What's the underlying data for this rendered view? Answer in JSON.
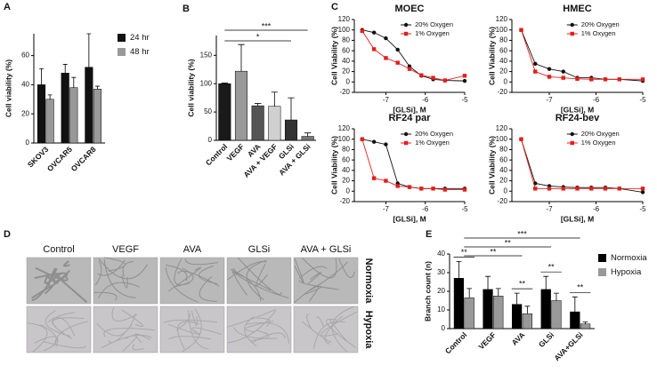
{
  "chart_data": [
    {
      "label": "A",
      "type": "bar",
      "ylabel": "Cell viability (%)",
      "categories": [
        "SKOV3",
        "OVCAR5",
        "OVCAR8"
      ],
      "series": [
        {
          "name": "24 hr",
          "color": "#111111",
          "values": [
            40,
            48,
            52
          ],
          "errors": [
            11,
            6,
            23
          ]
        },
        {
          "name": "48 hr",
          "color": "#999999",
          "values": [
            30,
            38,
            37
          ],
          "errors": [
            3,
            7,
            2
          ]
        }
      ],
      "ylim": [
        0,
        75
      ],
      "yticks": [
        0,
        20,
        40,
        60
      ],
      "legend": "right"
    },
    {
      "label": "B",
      "type": "bar",
      "ylabel": "Cell viability (%)",
      "categories": [
        "Control",
        "VEGF",
        "AVA",
        "AVA + VEGF",
        "GLSi",
        "AVA + GLSi"
      ],
      "series": [
        {
          "colors": [
            "#1a1a1a",
            "#999999",
            "#555555",
            "#d0d0d0",
            "#333333",
            "#777777"
          ],
          "values": [
            100,
            122,
            61,
            60,
            36,
            7
          ],
          "errors": [
            1,
            47,
            4,
            25,
            39,
            6
          ]
        }
      ],
      "ylim": [
        0,
        185
      ],
      "yticks": [
        0,
        50,
        100,
        150
      ],
      "annotations": [
        {
          "text": "***",
          "from": "Control",
          "to": "AVA + GLSi"
        },
        {
          "text": "*",
          "from": "Control",
          "to": "GLSi"
        }
      ]
    },
    {
      "label": "C",
      "type": "line",
      "title": "MOEC",
      "ylabel": "Cell Viability (%)",
      "xlabel": "[GLSi], M",
      "x": [
        -7.6,
        -7.3,
        -7.0,
        -6.7,
        -6.4,
        -6.1,
        -5.8,
        -5.5,
        -5.0
      ],
      "series": [
        {
          "name": "20% Oxygen",
          "color": "#111111",
          "marker": "circle",
          "values": [
            100,
            95,
            84,
            62,
            30,
            12,
            5,
            3,
            2
          ]
        },
        {
          "name": "1% Oxygen",
          "color": "#e0201c",
          "marker": "square",
          "values": [
            98,
            63,
            46,
            37,
            25,
            13,
            8,
            3,
            12
          ]
        }
      ],
      "xlim": [
        -7.8,
        -5
      ],
      "xticks": [
        -7,
        -6,
        -5
      ],
      "ylim": [
        -20,
        120
      ],
      "yticks": [
        -20,
        0,
        20,
        40,
        60,
        80,
        100,
        120
      ],
      "legend": "upper right"
    },
    {
      "type": "line",
      "title": "HMEC",
      "ylabel": "Cell Viability (%)",
      "xlabel": "[GLSi], M",
      "x": [
        -7.6,
        -7.3,
        -7.0,
        -6.7,
        -6.4,
        -6.1,
        -5.8,
        -5.5,
        -5.0
      ],
      "series": [
        {
          "name": "20% Oxygen",
          "color": "#111111",
          "marker": "circle",
          "values": [
            100,
            35,
            25,
            20,
            8,
            8,
            5,
            5,
            2
          ]
        },
        {
          "name": "1% Oxygen",
          "color": "#e0201c",
          "marker": "square",
          "values": [
            100,
            20,
            10,
            8,
            6,
            5,
            5,
            5,
            5
          ]
        }
      ],
      "xlim": [
        -7.8,
        -5
      ],
      "xticks": [
        -7,
        -6,
        -5
      ],
      "ylim": [
        -20,
        120
      ],
      "yticks": [
        -20,
        0,
        20,
        40,
        60,
        80,
        100,
        120
      ],
      "legend": "upper right"
    },
    {
      "type": "line",
      "title": "RF24 par",
      "ylabel": "Cell Viability (%)",
      "xlabel": "[GLSi], M",
      "x": [
        -7.6,
        -7.3,
        -7.0,
        -6.7,
        -6.4,
        -6.1,
        -5.8,
        -5.5,
        -5.0
      ],
      "series": [
        {
          "name": "20% Oxygen",
          "color": "#111111",
          "marker": "circle",
          "values": [
            100,
            95,
            90,
            15,
            8,
            5,
            5,
            5,
            5
          ]
        },
        {
          "name": "1% Oxygen",
          "color": "#e0201c",
          "marker": "square",
          "values": [
            100,
            25,
            20,
            10,
            8,
            5,
            5,
            3,
            3
          ]
        }
      ],
      "xlim": [
        -7.8,
        -5
      ],
      "xticks": [
        -7,
        -6,
        -5
      ],
      "ylim": [
        -20,
        120
      ],
      "yticks": [
        -20,
        0,
        20,
        40,
        60,
        80,
        100,
        120
      ],
      "legend": "upper right"
    },
    {
      "type": "line",
      "title": "RF24-bev",
      "ylabel": "Cell Viability (%)",
      "xlabel": "[GLSi], M",
      "x": [
        -7.6,
        -7.3,
        -7.0,
        -6.7,
        -6.4,
        -6.1,
        -5.8,
        -5.5,
        -5.0
      ],
      "series": [
        {
          "name": "20% Oxygen",
          "color": "#111111",
          "marker": "circle",
          "values": [
            100,
            15,
            10,
            8,
            7,
            7,
            7,
            5,
            -2
          ]
        },
        {
          "name": "1% Oxygen",
          "color": "#e0201c",
          "marker": "square",
          "values": [
            100,
            5,
            5,
            5,
            5,
            5,
            5,
            5,
            5
          ]
        }
      ],
      "xlim": [
        -7.8,
        -5
      ],
      "xticks": [
        -7,
        -6,
        -5
      ],
      "ylim": [
        -20,
        120
      ],
      "yticks": [
        -20,
        0,
        20,
        40,
        60,
        80,
        100,
        120
      ],
      "legend": "upper right"
    },
    {
      "label": "E",
      "type": "bar",
      "ylabel": "Branch count  (n)",
      "categories": [
        "Control",
        "VEGF",
        "AVA",
        "GLSi",
        "AVA+GLSi"
      ],
      "series": [
        {
          "name": "Normoxia",
          "color": "#000000",
          "values": [
            27,
            21,
            13,
            21,
            9
          ],
          "errors": [
            9,
            7,
            6,
            7,
            8
          ]
        },
        {
          "name": "Hypoxia",
          "color": "#999999",
          "values": [
            16.5,
            17.5,
            8,
            15,
            2.5
          ],
          "errors": [
            5,
            4,
            4,
            4,
            1
          ]
        }
      ],
      "ylim": [
        0,
        40
      ],
      "yticks": [
        0,
        10,
        20,
        30,
        40
      ],
      "legend": "right",
      "annotations": [
        {
          "text": "***",
          "from": "Control",
          "to": "AVA+GLSi"
        },
        {
          "text": "**",
          "from": "Control",
          "to": "GLSi"
        },
        {
          "text": "**",
          "from": "Control",
          "to": "AVA"
        },
        {
          "text": "**",
          "within": "Control"
        },
        {
          "text": "**",
          "within": "AVA"
        },
        {
          "text": "**",
          "within": "GLSi"
        },
        {
          "text": "**",
          "within": "AVA+GLSi"
        }
      ]
    }
  ],
  "micrographs": {
    "label": "D",
    "columns": [
      "Control",
      "VEGF",
      "AVA",
      "GLSi",
      "AVA + GLSi"
    ],
    "rows": [
      "Normoxia",
      "Hypoxia"
    ]
  }
}
